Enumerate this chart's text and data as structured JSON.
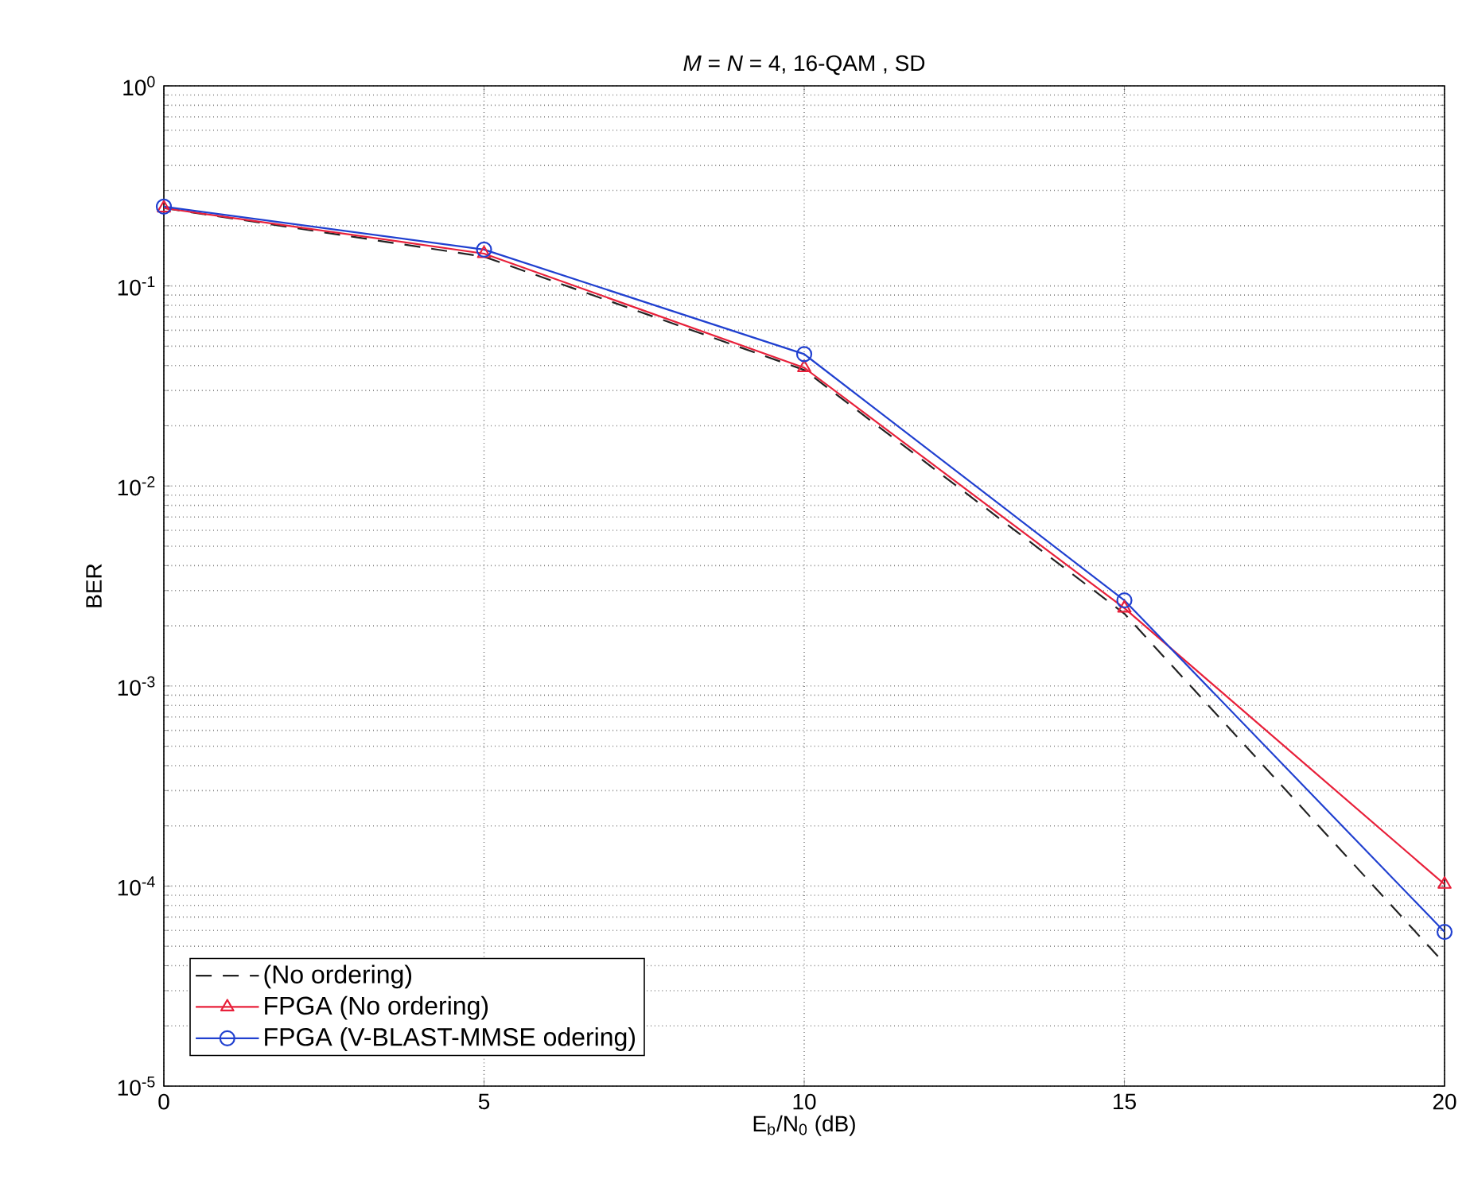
{
  "chart_data": {
    "type": "line",
    "title": "*M* = *N* = 4, 16-QAM , SD",
    "xlabel": "E$_{b}$/N$_{0}$ (dB)",
    "ylabel": "BER",
    "x": [
      0,
      5,
      10,
      15,
      20
    ],
    "series": [
      {
        "name": "(No ordering)",
        "color": "#222222",
        "line_style": "dashed",
        "marker": "none",
        "values": [
          0.245,
          0.14,
          0.038,
          0.0023,
          4.1e-05
        ]
      },
      {
        "name": "FPGA (No ordering)",
        "color": "#e8203a",
        "line_style": "solid",
        "marker": "triangle",
        "values": [
          0.245,
          0.145,
          0.039,
          0.00245,
          0.000102
        ]
      },
      {
        "name": "FPGA (V-BLAST-MMSE odering)",
        "color": "#2040d0",
        "line_style": "solid",
        "marker": "circle",
        "values": [
          0.249,
          0.152,
          0.0456,
          0.00268,
          5.9e-05
        ]
      }
    ],
    "xlim": [
      0,
      20
    ],
    "xticks": [
      0,
      5,
      10,
      15,
      20
    ],
    "ylim": [
      1e-05,
      1
    ],
    "yticks": [
      {
        "value": 1,
        "label": "10$^{0}$"
      },
      {
        "value": 0.1,
        "label": "10$^{-1}$"
      },
      {
        "value": 0.01,
        "label": "10$^{-2}$"
      },
      {
        "value": 0.001,
        "label": "10$^{-3}$"
      },
      {
        "value": 0.0001,
        "label": "10$^{-4}$"
      },
      {
        "value": 1e-05,
        "label": "10$^{-5}$"
      }
    ],
    "log": "y",
    "grid": true,
    "legend": "bottom left"
  }
}
